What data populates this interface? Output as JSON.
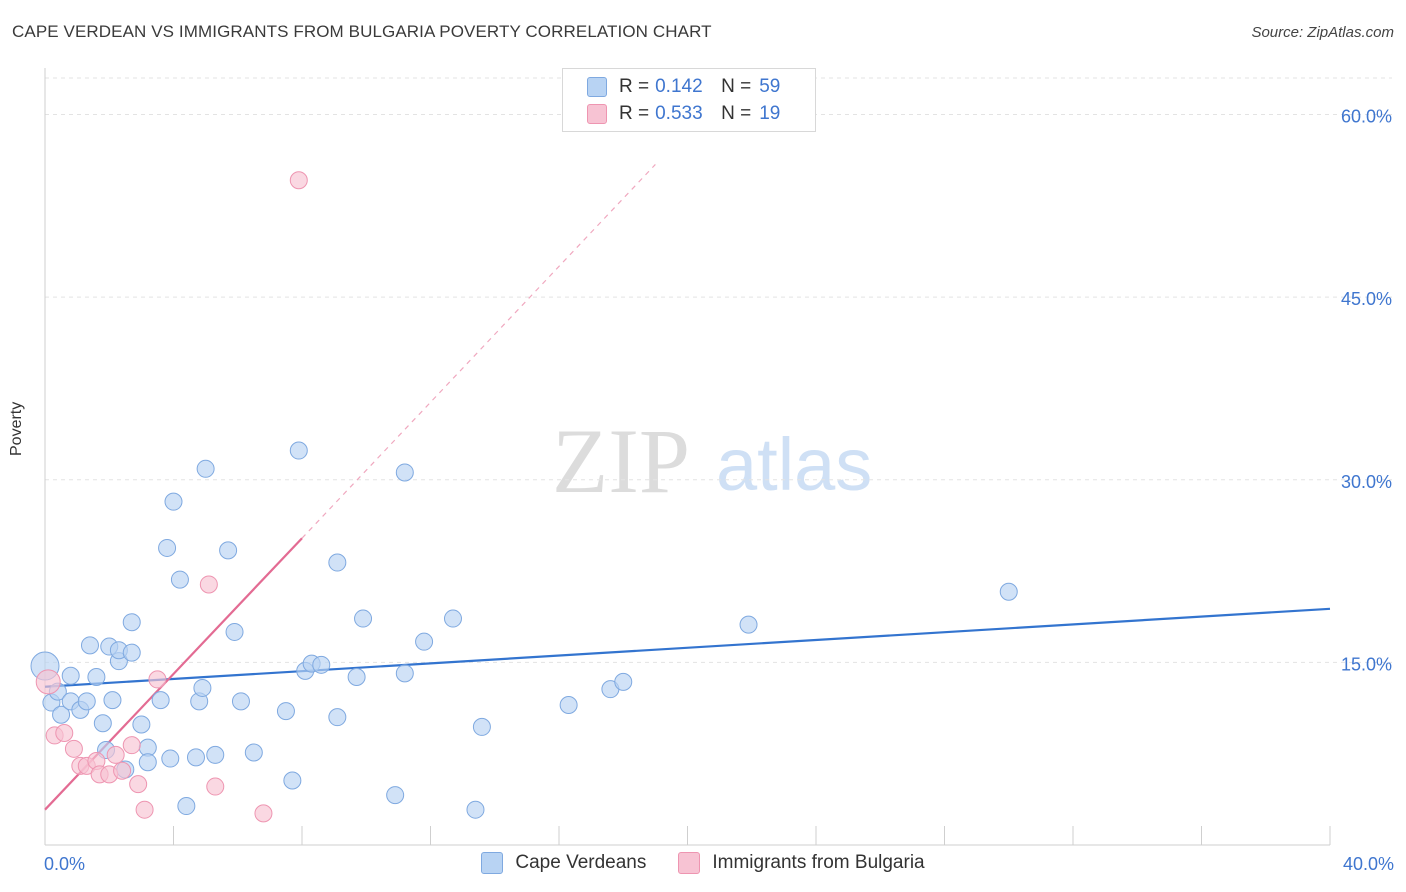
{
  "title": "CAPE VERDEAN VS IMMIGRANTS FROM BULGARIA POVERTY CORRELATION CHART",
  "source": "Source: ZipAtlas.com",
  "watermark": {
    "zip": "ZIP",
    "atlas": "atlas"
  },
  "legend": {
    "rows": [
      {
        "r_label": "R =",
        "r_value": "0.142",
        "n_label": "N =",
        "n_value": "59"
      },
      {
        "r_label": "R =",
        "r_value": "0.533",
        "n_label": "N =",
        "n_value": "19"
      }
    ]
  },
  "bottom_legend": [
    "Cape Verdeans",
    "Immigrants from Bulgaria"
  ],
  "colors": {
    "blue_fill": "#b8d3f3",
    "blue_stroke": "#7fa9e0",
    "blue_line": "#3374cf",
    "pink_fill": "#f7c3d3",
    "pink_stroke": "#ee95b1",
    "pink_line": "#e36b93",
    "tick_text": "#3f76cf",
    "grid": "#e3e3e3"
  },
  "chart_data": {
    "type": "scatter",
    "title": "CAPE VERDEAN VS IMMIGRANTS FROM BULGARIA POVERTY CORRELATION CHART",
    "xlabel": "",
    "ylabel": "Poverty",
    "xlim": [
      0,
      40
    ],
    "ylim": [
      0,
      63
    ],
    "x_tick_labels": [
      "0.0%",
      "40.0%"
    ],
    "y_ticks": [
      15,
      30,
      45,
      60
    ],
    "y_tick_labels": [
      "15.0%",
      "30.0%",
      "45.0%",
      "60.0%"
    ],
    "grid": true,
    "series": [
      {
        "name": "Cape Verdeans",
        "r": 0.142,
        "n": 59,
        "trend": {
          "x": [
            0,
            40
          ],
          "y": [
            13.0,
            19.4
          ]
        },
        "points": [
          [
            0.0,
            14.7
          ],
          [
            0.2,
            11.7
          ],
          [
            0.4,
            12.6
          ],
          [
            0.5,
            10.7
          ],
          [
            0.8,
            13.9
          ],
          [
            0.8,
            11.8
          ],
          [
            1.1,
            11.1
          ],
          [
            1.3,
            11.8
          ],
          [
            1.4,
            16.4
          ],
          [
            1.6,
            13.8
          ],
          [
            1.8,
            10.0
          ],
          [
            1.9,
            7.8
          ],
          [
            2.0,
            16.3
          ],
          [
            2.1,
            11.9
          ],
          [
            2.3,
            15.1
          ],
          [
            2.3,
            16.0
          ],
          [
            2.5,
            6.2
          ],
          [
            2.7,
            15.8
          ],
          [
            2.7,
            18.3
          ],
          [
            3.0,
            9.9
          ],
          [
            3.2,
            8.0
          ],
          [
            3.2,
            6.8
          ],
          [
            3.6,
            11.9
          ],
          [
            3.8,
            24.4
          ],
          [
            3.9,
            7.1
          ],
          [
            4.0,
            28.2
          ],
          [
            4.2,
            21.8
          ],
          [
            4.4,
            3.2
          ],
          [
            4.7,
            7.2
          ],
          [
            4.8,
            11.8
          ],
          [
            4.9,
            12.9
          ],
          [
            5.0,
            30.9
          ],
          [
            5.3,
            7.4
          ],
          [
            5.7,
            24.2
          ],
          [
            5.9,
            17.5
          ],
          [
            6.1,
            11.8
          ],
          [
            6.5,
            7.6
          ],
          [
            7.5,
            11.0
          ],
          [
            7.7,
            5.3
          ],
          [
            7.9,
            32.4
          ],
          [
            8.1,
            14.3
          ],
          [
            8.3,
            14.9
          ],
          [
            8.6,
            14.8
          ],
          [
            9.1,
            10.5
          ],
          [
            9.1,
            23.2
          ],
          [
            9.7,
            13.8
          ],
          [
            9.9,
            18.6
          ],
          [
            10.9,
            4.1
          ],
          [
            11.2,
            14.1
          ],
          [
            11.2,
            30.6
          ],
          [
            11.8,
            16.7
          ],
          [
            12.7,
            18.6
          ],
          [
            13.4,
            2.9
          ],
          [
            13.6,
            9.7
          ],
          [
            16.3,
            11.5
          ],
          [
            17.6,
            12.8
          ],
          [
            18.0,
            13.4
          ],
          [
            21.9,
            18.1
          ],
          [
            30.0,
            20.8
          ]
        ]
      },
      {
        "name": "Immigrants from Bulgaria",
        "r": 0.533,
        "n": 19,
        "trend": {
          "x": [
            0,
            8.0
          ],
          "y": [
            2.9,
            25.2
          ]
        },
        "trend_dashed": {
          "x": [
            8.0,
            19.0
          ],
          "y": [
            25.2,
            55.9
          ]
        },
        "points": [
          [
            0.1,
            13.4
          ],
          [
            0.3,
            9.0
          ],
          [
            0.6,
            9.2
          ],
          [
            0.9,
            7.9
          ],
          [
            1.1,
            6.5
          ],
          [
            1.3,
            6.5
          ],
          [
            1.6,
            6.9
          ],
          [
            1.7,
            5.8
          ],
          [
            2.0,
            5.8
          ],
          [
            2.2,
            7.4
          ],
          [
            2.4,
            6.1
          ],
          [
            2.7,
            8.2
          ],
          [
            2.9,
            5.0
          ],
          [
            3.1,
            2.9
          ],
          [
            3.5,
            13.6
          ],
          [
            5.1,
            21.4
          ],
          [
            5.3,
            4.8
          ],
          [
            6.8,
            2.6
          ],
          [
            7.9,
            54.6
          ]
        ]
      }
    ]
  }
}
